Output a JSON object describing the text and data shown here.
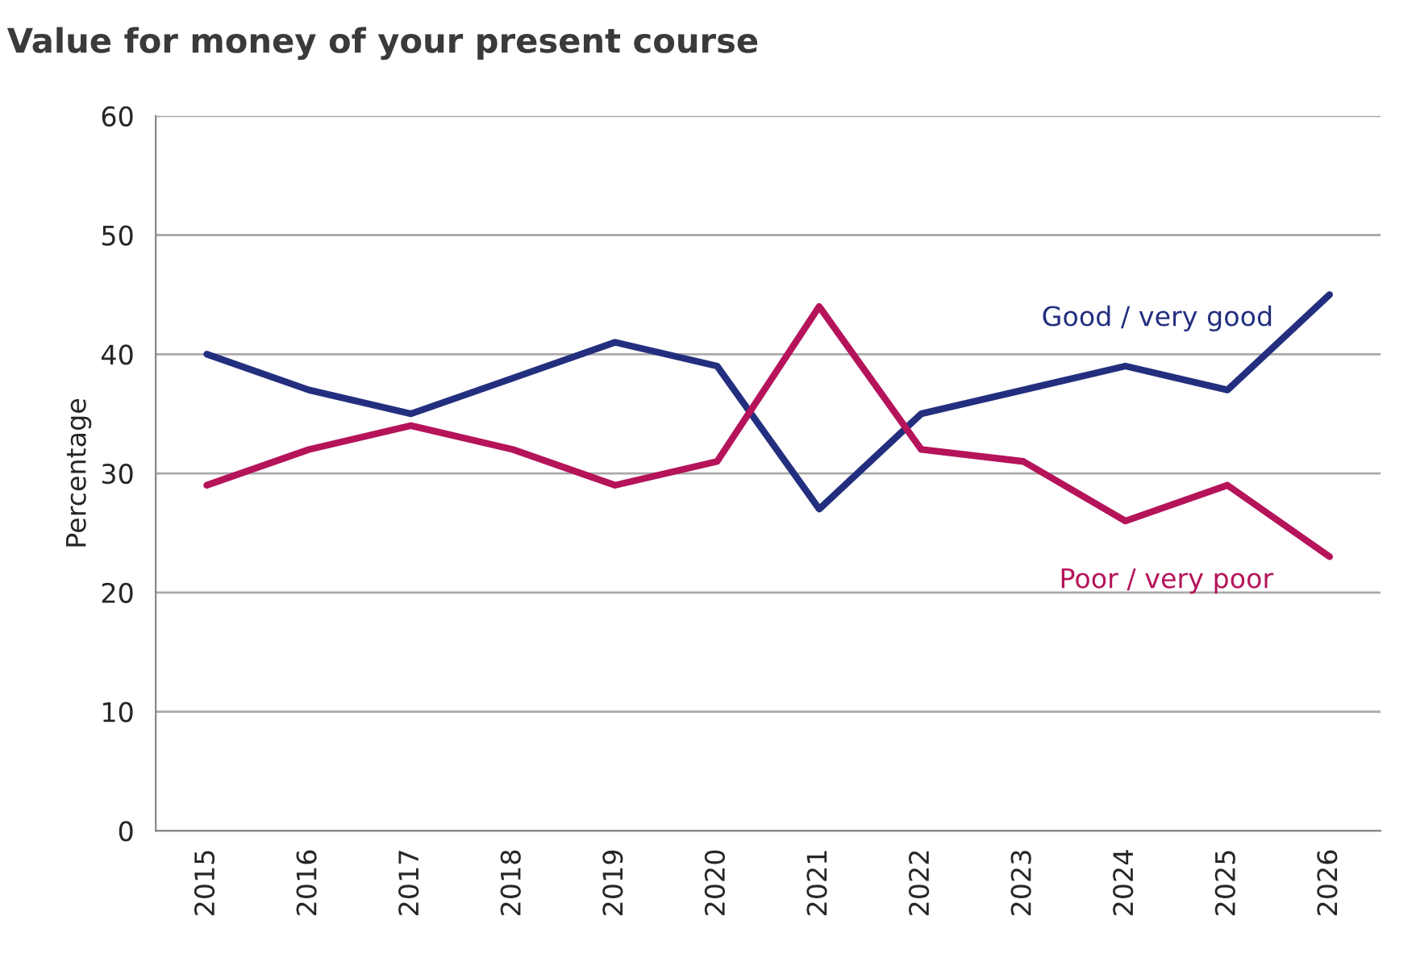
{
  "chart_data": {
    "type": "line",
    "title": "Value for money of your present course",
    "ylabel": "Percentage",
    "categories": [
      "2015",
      "2016",
      "2017",
      "2018",
      "2019",
      "2020",
      "2021",
      "2022",
      "2023",
      "2024",
      "2025",
      "2026"
    ],
    "series": [
      {
        "name": "Good / very good",
        "color": "#232f7e",
        "values": [
          40,
          37,
          35,
          38,
          41,
          39,
          27,
          35,
          37,
          39,
          37,
          45
        ]
      },
      {
        "name": "Poor / very poor",
        "color": "#b5135a",
        "values": [
          29,
          32,
          34,
          32,
          29,
          31,
          44,
          32,
          31,
          26,
          29,
          23
        ]
      }
    ],
    "ylim": [
      0,
      60
    ],
    "yticks": [
      0,
      10,
      20,
      30,
      40,
      50,
      60
    ],
    "grid": "y",
    "legend": false,
    "marker": "none",
    "line_style": "solid"
  }
}
